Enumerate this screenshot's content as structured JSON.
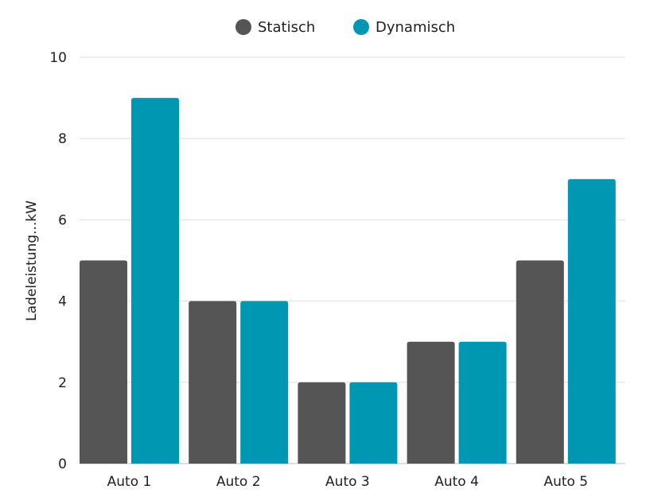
{
  "chart_data": {
    "type": "bar",
    "categories": [
      "Auto 1",
      "Auto 2",
      "Auto 3",
      "Auto 4",
      "Auto 5"
    ],
    "series": [
      {
        "name": "Statisch",
        "values": [
          5,
          4,
          2,
          3,
          5
        ],
        "color": "#555555"
      },
      {
        "name": "Dynamisch",
        "values": [
          9,
          4,
          2,
          3,
          7
        ],
        "color": "#0097b2"
      }
    ],
    "ylabel": "Ladeleistung...kW",
    "ylim": [
      0,
      10
    ],
    "yticks": [
      0,
      2,
      4,
      6,
      8,
      10
    ],
    "grid": true,
    "legend": {
      "placement": "top-center",
      "entries": [
        "Statisch",
        "Dynamisch"
      ]
    }
  }
}
